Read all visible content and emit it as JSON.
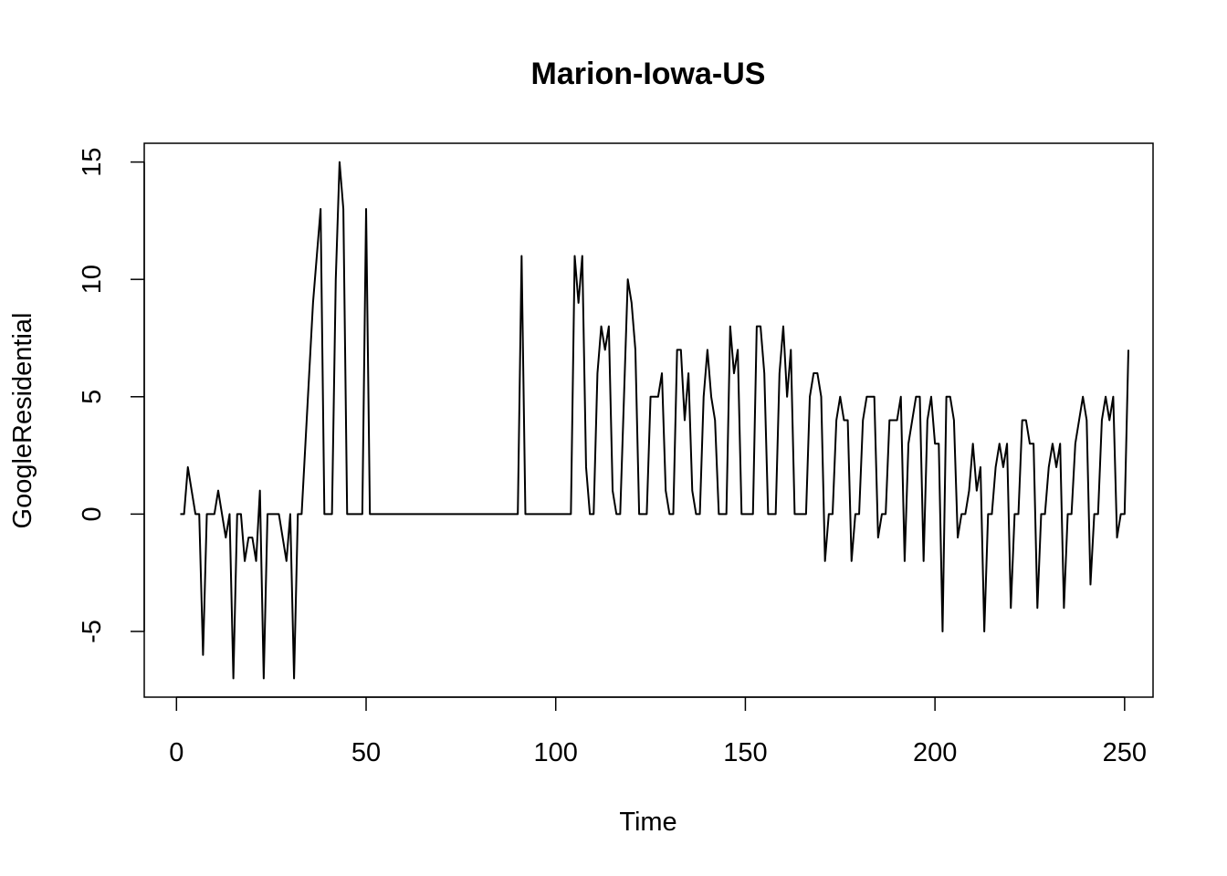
{
  "chart_data": {
    "type": "line",
    "title": "Marion-Iowa-US",
    "xlabel": "Time",
    "ylabel": "GoogleResidential",
    "xlim": [
      -8.5,
      257.5
    ],
    "ylim": [
      -7.8,
      15.8
    ],
    "xticks": [
      0,
      50,
      100,
      150,
      200,
      250
    ],
    "yticks": [
      -5,
      0,
      5,
      10,
      15
    ],
    "grid": false,
    "legend": "none",
    "line_color": "#000000",
    "series": [
      {
        "x_start": 1,
        "values": [
          0,
          0,
          2,
          1,
          0,
          0,
          -6,
          0,
          0,
          0,
          1,
          0,
          -1,
          0,
          -7,
          0,
          0,
          -2,
          -1,
          -1,
          -2,
          1,
          -7,
          0,
          0,
          0,
          0,
          -1,
          -2,
          0,
          -7,
          0,
          0,
          3,
          6,
          9,
          11,
          13,
          0,
          0,
          0,
          10,
          15,
          13,
          0,
          0,
          0,
          0,
          0,
          13,
          0,
          0,
          0,
          0,
          0,
          0,
          0,
          0,
          0,
          0,
          0,
          0,
          0,
          0,
          0,
          0,
          0,
          0,
          0,
          0,
          0,
          0,
          0,
          0,
          0,
          0,
          0,
          0,
          0,
          0,
          0,
          0,
          0,
          0,
          0,
          0,
          0,
          0,
          0,
          0,
          11,
          0,
          0,
          0,
          0,
          0,
          0,
          0,
          0,
          0,
          0,
          0,
          0,
          0,
          11,
          9,
          11,
          2,
          0,
          0,
          6,
          8,
          7,
          8,
          1,
          0,
          0,
          5,
          10,
          9,
          7,
          0,
          0,
          0,
          5,
          5,
          5,
          6,
          1,
          0,
          0,
          7,
          7,
          4,
          6,
          1,
          0,
          0,
          5,
          7,
          5,
          4,
          0,
          0,
          0,
          8,
          6,
          7,
          0,
          0,
          0,
          0,
          8,
          8,
          6,
          0,
          0,
          0,
          6,
          8,
          5,
          7,
          0,
          0,
          0,
          0,
          5,
          6,
          6,
          5,
          -2,
          0,
          0,
          4,
          5,
          4,
          4,
          -2,
          0,
          0,
          4,
          5,
          5,
          5,
          -1,
          0,
          0,
          4,
          4,
          4,
          5,
          -2,
          3,
          4,
          5,
          5,
          -2,
          4,
          5,
          3,
          3,
          -5,
          5,
          5,
          4,
          -1,
          0,
          0,
          1,
          3,
          1,
          2,
          -5,
          0,
          0,
          2,
          3,
          2,
          3,
          -4,
          0,
          0,
          4,
          4,
          3,
          3,
          -4,
          0,
          0,
          2,
          3,
          2,
          3,
          -4,
          0,
          0,
          3,
          4,
          5,
          4,
          -3,
          0,
          0,
          4,
          5,
          4,
          5,
          -1,
          0,
          0,
          7
        ]
      }
    ]
  }
}
